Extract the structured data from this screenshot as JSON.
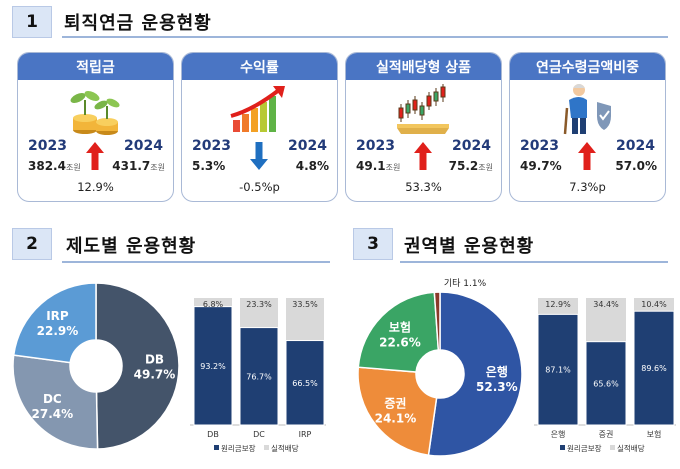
{
  "section1": {
    "number": "1",
    "title": "퇴직연금 운용현황",
    "cards": [
      {
        "title": "적립금",
        "year1": "2023",
        "year2": "2024",
        "value1": "382.4",
        "value2": "431.7",
        "unit": "조원",
        "change": "12.9%",
        "direction": "up",
        "icon": "coin-stack-sprout-icon"
      },
      {
        "title": "수익률",
        "year1": "2023",
        "year2": "2024",
        "value1": "5.3%",
        "value2": "4.8%",
        "unit": "",
        "change": "-0.5%p",
        "direction": "down",
        "icon": "growth-bar-chart-icon"
      },
      {
        "title": "실적배당형 상품",
        "year1": "2023",
        "year2": "2024",
        "value1": "49.1",
        "value2": "75.2",
        "unit": "조원",
        "change": "53.3%",
        "direction": "up",
        "icon": "candlestick-chart-icon"
      },
      {
        "title": "연금수령금액비중",
        "year1": "2023",
        "year2": "2024",
        "value1": "49.7%",
        "value2": "57.0%",
        "unit": "",
        "change": "7.3%p",
        "direction": "up",
        "icon": "elderly-person-shield-icon"
      }
    ]
  },
  "section2": {
    "number": "2",
    "title": "제도별 운용현황"
  },
  "section3": {
    "number": "3",
    "title": "권역별 운용현황"
  },
  "colors": {
    "navy": "#1f3f73",
    "gray": "#d9d9d9",
    "up": "#e0201b",
    "down": "#1f6fc0",
    "header": "#4a75c4"
  },
  "chart_data": [
    {
      "type": "pie",
      "variant": "donut",
      "labels": [
        "DB",
        "DC",
        "IRP"
      ],
      "values": [
        49.7,
        27.4,
        22.9
      ],
      "value_labels": [
        "49.7%",
        "27.4%",
        "22.9%"
      ],
      "colors": [
        "#44546a",
        "#8497b0",
        "#5b9bd5"
      ]
    },
    {
      "type": "bar",
      "stacked": true,
      "percent": true,
      "categories": [
        "DB",
        "DC",
        "IRP"
      ],
      "series": [
        {
          "name": "원리금보장",
          "values": [
            93.2,
            76.7,
            66.5
          ],
          "labels": [
            "93.2%",
            "76.7%",
            "66.5%"
          ],
          "color": "#1f3f73"
        },
        {
          "name": "실적배당",
          "values": [
            6.8,
            23.3,
            33.5
          ],
          "labels": [
            "6.8%",
            "23.3%",
            "33.5%"
          ],
          "color": "#d9d9d9"
        }
      ],
      "legend": "bottom"
    },
    {
      "type": "pie",
      "variant": "donut",
      "labels": [
        "은행",
        "증권",
        "보험",
        "기타"
      ],
      "values": [
        52.3,
        24.1,
        22.6,
        1.1
      ],
      "value_labels": [
        "52.3%",
        "24.1%",
        "22.6%",
        "1.1%"
      ],
      "colors": [
        "#2f55a4",
        "#ee8c3a",
        "#3aa565",
        "#8a3a2a"
      ]
    },
    {
      "type": "bar",
      "stacked": true,
      "percent": true,
      "categories": [
        "은행",
        "증권",
        "보험"
      ],
      "series": [
        {
          "name": "원리금보장",
          "values": [
            87.1,
            65.6,
            89.6
          ],
          "labels": [
            "87.1%",
            "65.6%",
            "89.6%"
          ],
          "color": "#1f3f73"
        },
        {
          "name": "실적배당",
          "values": [
            12.9,
            34.4,
            10.4
          ],
          "labels": [
            "12.9%",
            "34.4%",
            "10.4%"
          ],
          "color": "#d9d9d9"
        }
      ],
      "legend": "bottom"
    }
  ]
}
